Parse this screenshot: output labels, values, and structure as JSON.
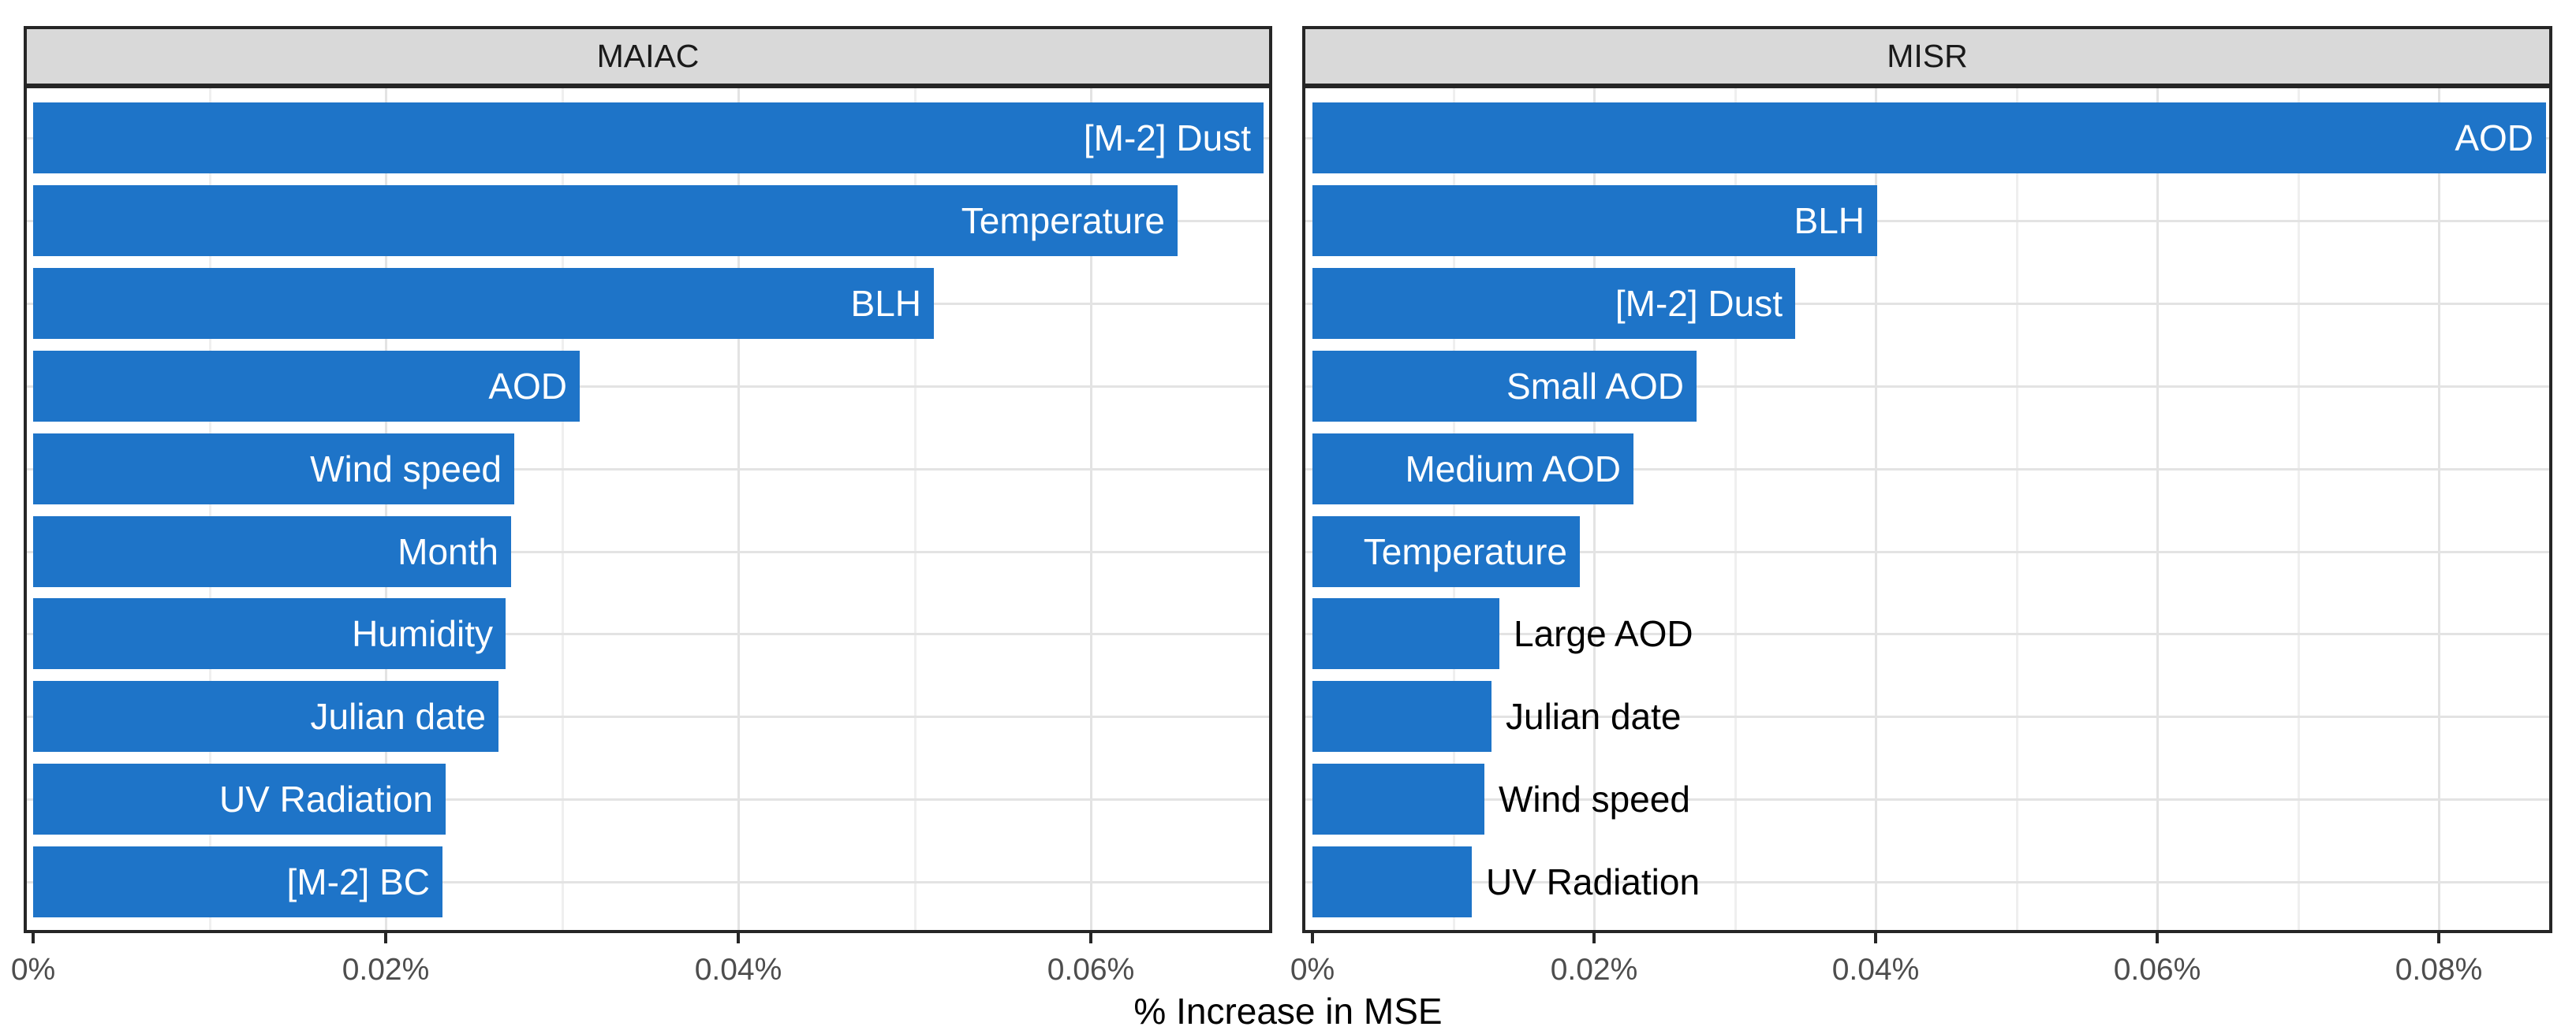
{
  "colors": {
    "bar": "#1E74C8",
    "strip_background": "#D9D9D9",
    "strip_text": "#1A1A1A",
    "panel_border": "#262626",
    "grid_major": "#E3E3E3",
    "grid_minor": "#EFEFEF",
    "tick_mark": "#262626",
    "tick_label": "#4D4D4D",
    "bar_label_inside": "#FFFFFF",
    "bar_label_outside": "#000000",
    "background": "#FFFFFF"
  },
  "chart_data": {
    "type": "bar",
    "orientation": "horizontal",
    "xlabel": "% Increase in MSE",
    "grid": "on",
    "legend": "none",
    "facets": [
      {
        "title": "MAIAC",
        "x_axis": {
          "tick_values": [
            0,
            0.02,
            0.04,
            0.06
          ],
          "tick_labels": [
            "0%",
            "0.02%",
            "0.04%",
            "0.06%"
          ],
          "minor_values": [
            0.01,
            0.03,
            0.05
          ],
          "xlim": [
            0,
            0.0702
          ]
        },
        "bars": [
          {
            "label": "[M-2] Dust",
            "value": 0.0698,
            "label_placement": "inside"
          },
          {
            "label": "Temperature",
            "value": 0.0649,
            "label_placement": "inside"
          },
          {
            "label": "BLH",
            "value": 0.0511,
            "label_placement": "inside"
          },
          {
            "label": "AOD",
            "value": 0.031,
            "label_placement": "inside"
          },
          {
            "label": "Wind speed",
            "value": 0.0273,
            "label_placement": "inside"
          },
          {
            "label": "Month",
            "value": 0.0271,
            "label_placement": "inside"
          },
          {
            "label": "Humidity",
            "value": 0.0268,
            "label_placement": "inside"
          },
          {
            "label": "Julian date",
            "value": 0.0264,
            "label_placement": "inside"
          },
          {
            "label": "UV Radiation",
            "value": 0.0234,
            "label_placement": "inside"
          },
          {
            "label": "[M-2] BC",
            "value": 0.0232,
            "label_placement": "inside"
          }
        ]
      },
      {
        "title": "MISR",
        "x_axis": {
          "tick_values": [
            0,
            0.02,
            0.04,
            0.06,
            0.08
          ],
          "tick_labels": [
            "0%",
            "0.02%",
            "0.04%",
            "0.06%",
            "0.08%"
          ],
          "minor_values": [
            0.01,
            0.03,
            0.05,
            0.07
          ],
          "xlim": [
            0,
            0.088
          ]
        },
        "bars": [
          {
            "label": "AOD",
            "value": 0.0876,
            "label_placement": "inside"
          },
          {
            "label": "BLH",
            "value": 0.0401,
            "label_placement": "inside"
          },
          {
            "label": "[M-2] Dust",
            "value": 0.0343,
            "label_placement": "inside"
          },
          {
            "label": "Small AOD",
            "value": 0.0273,
            "label_placement": "inside"
          },
          {
            "label": "Medium AOD",
            "value": 0.0228,
            "label_placement": "inside"
          },
          {
            "label": "Temperature",
            "value": 0.019,
            "label_placement": "inside"
          },
          {
            "label": "Large AOD",
            "value": 0.0133,
            "label_placement": "outside"
          },
          {
            "label": "Julian date",
            "value": 0.0127,
            "label_placement": "outside"
          },
          {
            "label": "Wind speed",
            "value": 0.0122,
            "label_placement": "outside"
          },
          {
            "label": "UV Radiation",
            "value": 0.0113,
            "label_placement": "outside"
          }
        ]
      }
    ]
  }
}
